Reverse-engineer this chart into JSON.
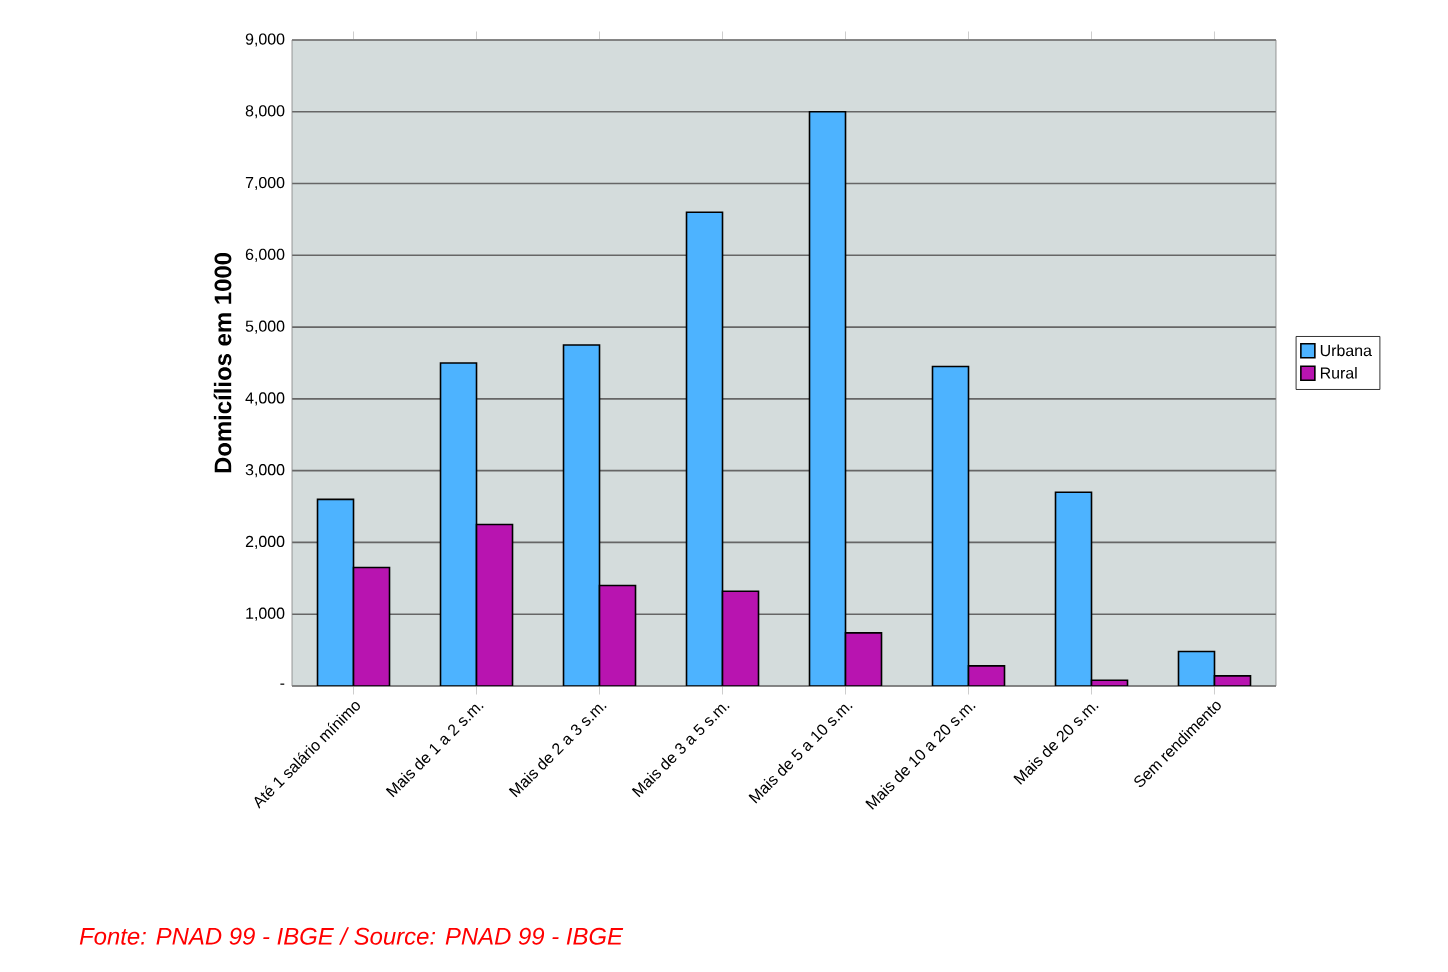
{
  "chart_data": {
    "type": "bar",
    "ylabel": "Domicílios em 1000",
    "categories": [
      "Até 1 salário mínimo",
      "Mais de 1 a 2 s.m.",
      "Mais de 2 a 3 s.m.",
      "Mais de 3 a 5 s.m.",
      "Mais de 5 a 10 s.m.",
      "Mais de 10 a 20 s.m.",
      "Mais de 20 s.m.",
      "Sem rendimento"
    ],
    "series": [
      {
        "name": "Urbana",
        "color": "#4db3ff",
        "values": [
          2600,
          4500,
          4750,
          6600,
          8000,
          4450,
          2700,
          480
        ]
      },
      {
        "name": "Rural",
        "color": "#b814b0",
        "values": [
          1650,
          2250,
          1400,
          1320,
          740,
          280,
          80,
          140
        ]
      }
    ],
    "ylim": [
      0,
      9000
    ],
    "yticks": [
      {
        "value": 0,
        "label": "-"
      },
      {
        "value": 1000,
        "label": "1,000"
      },
      {
        "value": 2000,
        "label": "2,000"
      },
      {
        "value": 3000,
        "label": "3,000"
      },
      {
        "value": 4000,
        "label": "4,000"
      },
      {
        "value": 5000,
        "label": "5,000"
      },
      {
        "value": 6000,
        "label": "6,000"
      },
      {
        "value": 7000,
        "label": "7,000"
      },
      {
        "value": 8000,
        "label": "8,000"
      },
      {
        "value": 9000,
        "label": "9,000"
      }
    ],
    "grid": "y",
    "legend": "right",
    "annotations": [
      "Fonte: PNAD 99 - IBGE / Source: PNAD 99 - IBGE"
    ]
  }
}
